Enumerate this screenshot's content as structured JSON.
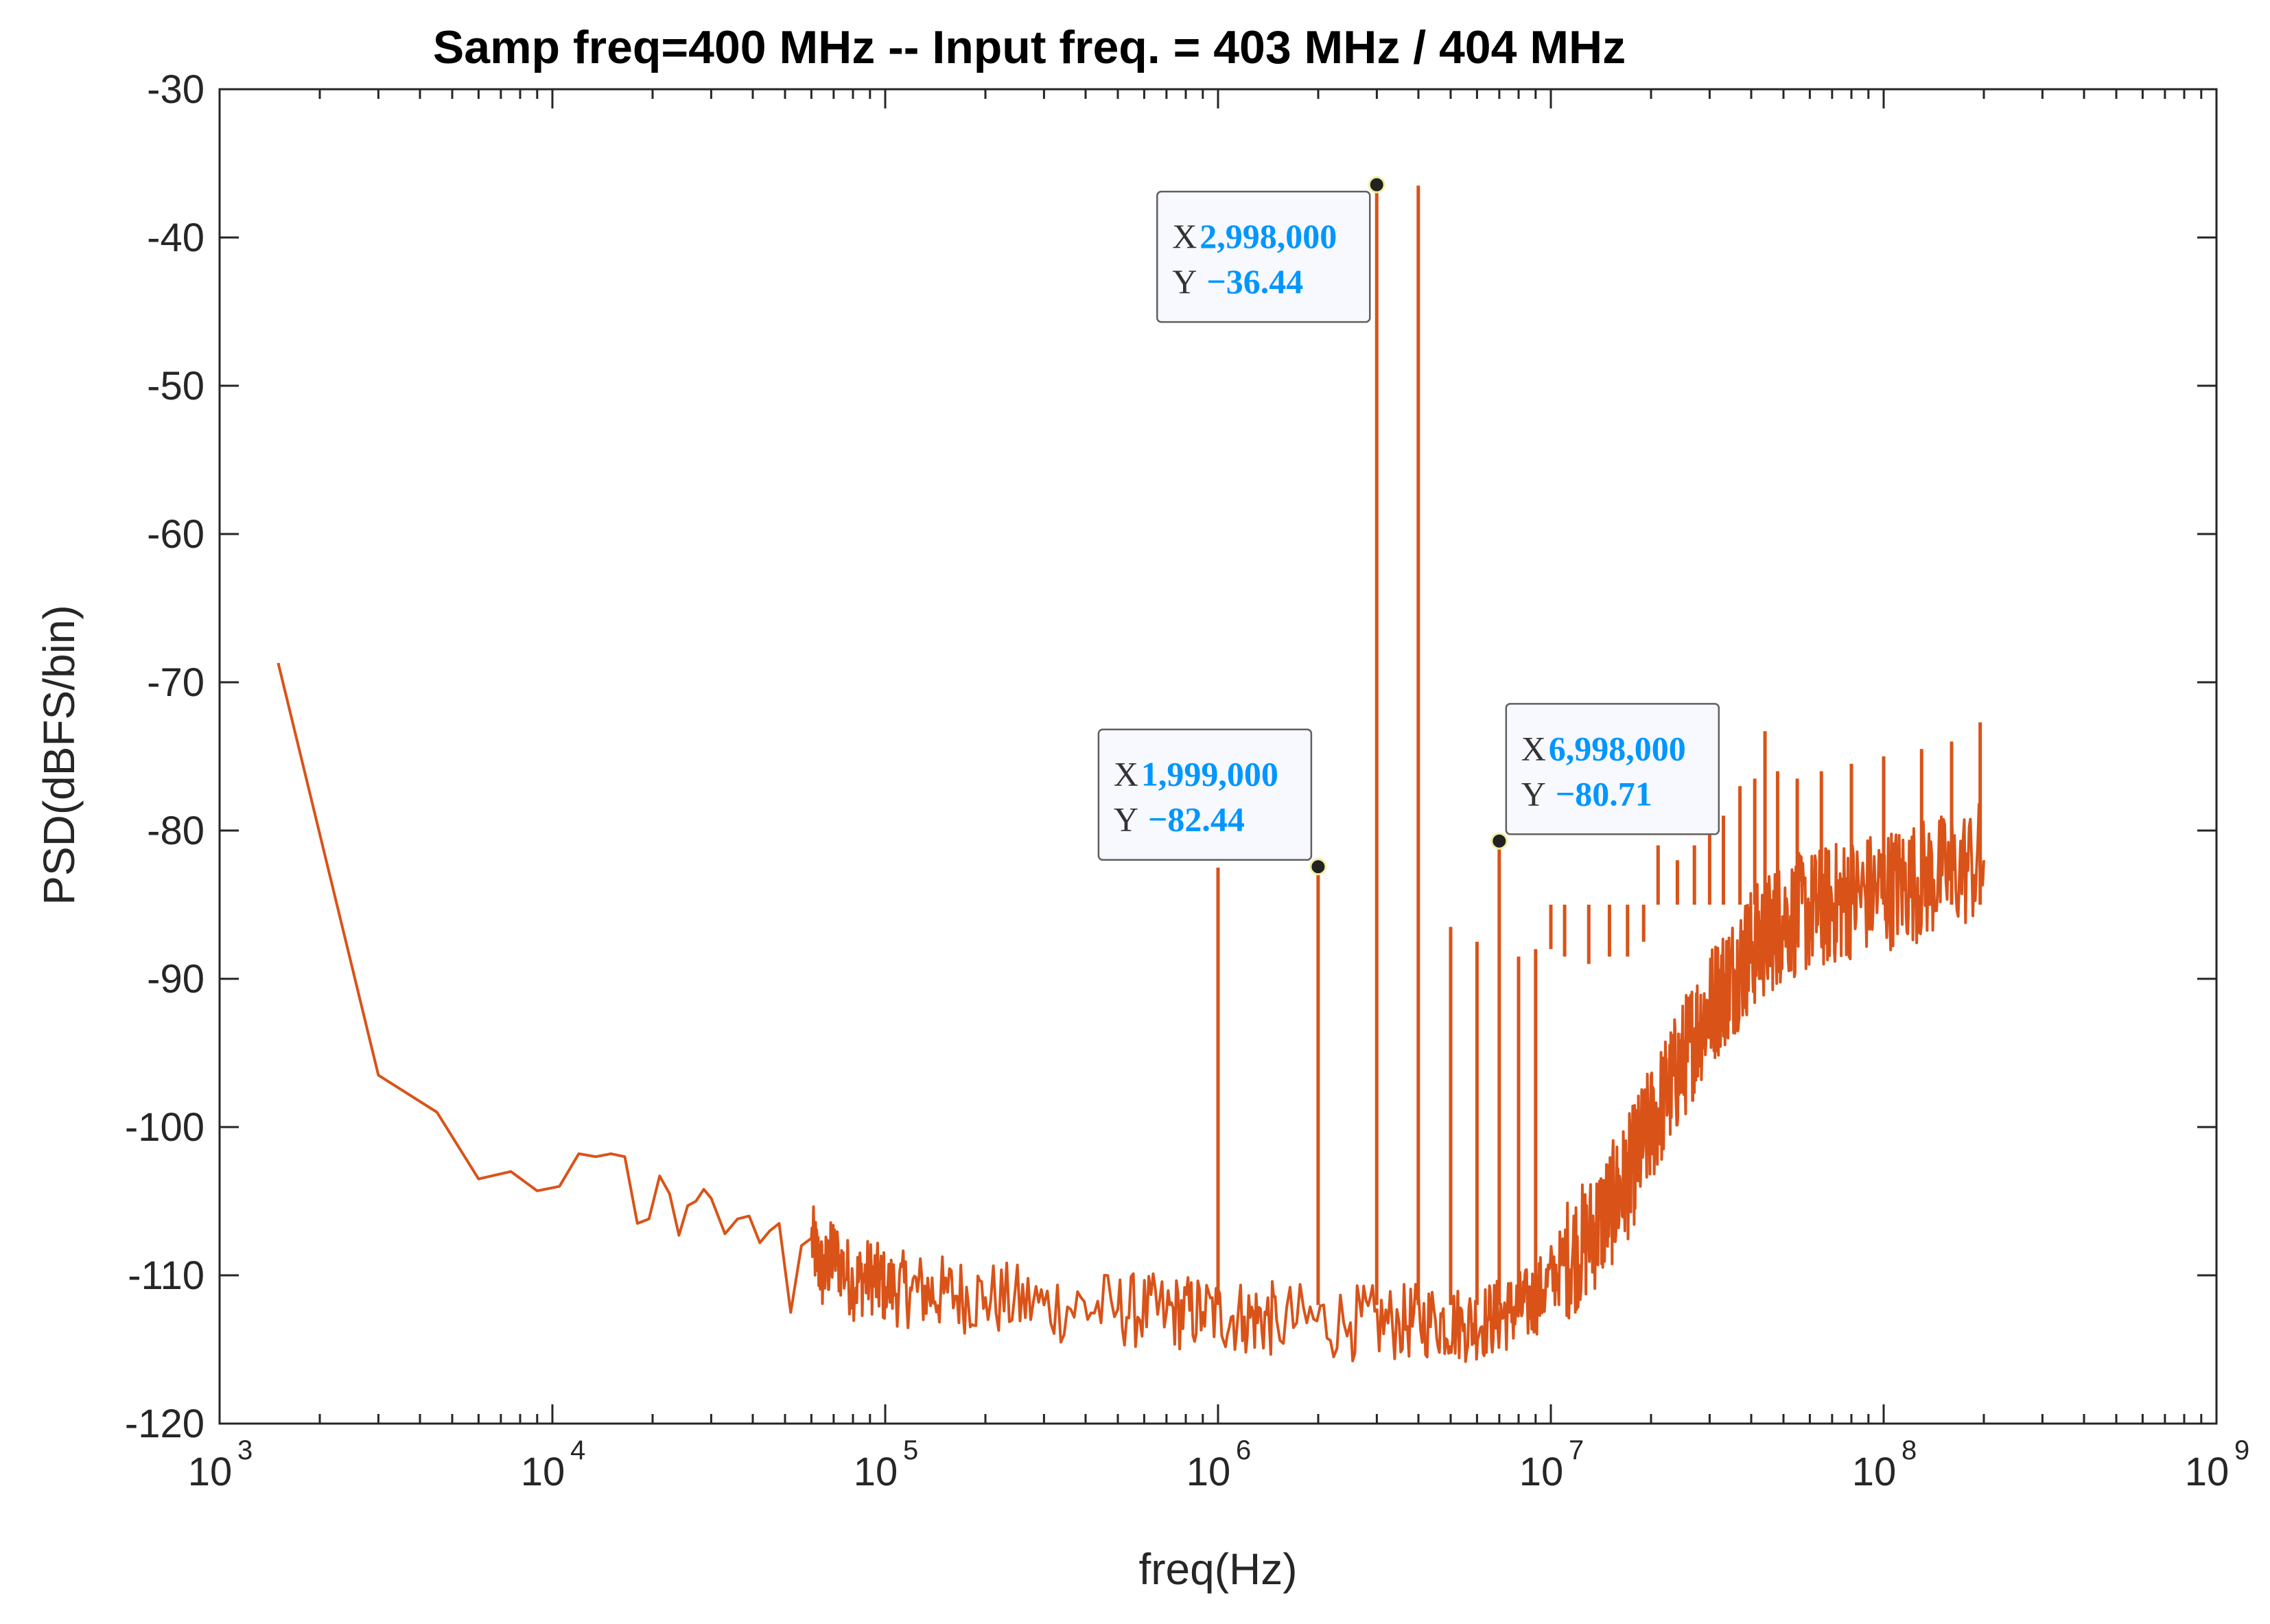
{
  "chart_data": {
    "type": "line",
    "title": "Samp freq=400 MHz --   Input freq. = 403 MHz / 404 MHz",
    "xlabel": "freq(Hz)",
    "ylabel": "PSD(dBFS/bin)",
    "xscale": "log",
    "xlim": [
      1000,
      1000000000
    ],
    "ylim": [
      -120,
      -30
    ],
    "x_ticks": [
      {
        "base": "10",
        "exp": "3",
        "value": 1000
      },
      {
        "base": "10",
        "exp": "4",
        "value": 10000
      },
      {
        "base": "10",
        "exp": "5",
        "value": 100000
      },
      {
        "base": "10",
        "exp": "6",
        "value": 1000000
      },
      {
        "base": "10",
        "exp": "7",
        "value": 10000000
      },
      {
        "base": "10",
        "exp": "8",
        "value": 100000000
      },
      {
        "base": "10",
        "exp": "9",
        "value": 1000000000
      }
    ],
    "y_ticks": [
      -30,
      -40,
      -50,
      -60,
      -70,
      -80,
      -90,
      -100,
      -110,
      -120
    ],
    "y_tick_labels": [
      "-30",
      "-40",
      "-50",
      "-60",
      "-70",
      "-80",
      "-90",
      "-100",
      "-110",
      "-120"
    ],
    "grid": false,
    "series": [
      {
        "name": "PSD",
        "color": "#D95319",
        "x": [
          1500,
          3000,
          4500,
          6000,
          7500,
          9000,
          10500,
          12000,
          13500,
          15000,
          16500,
          18000,
          19500,
          21000,
          22500,
          24000,
          25500,
          27000,
          28500,
          30000,
          33000,
          36000,
          39000,
          42000,
          45000,
          48000,
          52000,
          56000,
          60000,
          65000,
          70000,
          80000,
          90000,
          100000,
          120000,
          150000,
          200000,
          300000,
          500000,
          700000,
          900000,
          1200000,
          1500000,
          2500000,
          3500000,
          4500000,
          5500000,
          6500000,
          7500000,
          8500000,
          9500000,
          11000000,
          13000000,
          15000000,
          17000000,
          19000000,
          22000000,
          25000000,
          28000000,
          32000000,
          36000000,
          40000000,
          45000000,
          50000000,
          60000000,
          70000000,
          80000000,
          100000000,
          120000000,
          150000000,
          200000000
        ],
        "y": [
          -68.7,
          -96.5,
          -99,
          -103.5,
          -103,
          -104.3,
          -104,
          -101.8,
          -102.0,
          -101.8,
          -102.0,
          -106.5,
          -106.2,
          -103.3,
          -104.5,
          -107.3,
          -105.3,
          -105.0,
          -104.2,
          -104.8,
          -107.2,
          -106.2,
          -106.0,
          -107.8,
          -107.0,
          -106.5,
          -112.5,
          -108.0,
          -107.5,
          -110.0,
          -108.5,
          -110.5,
          -110.0,
          -110.8,
          -111.0,
          -111.2,
          -111.5,
          -112.0,
          -112.3,
          -112.5,
          -112.5,
          -112.8,
          -113.0,
          -113.2,
          -113.2,
          -113.0,
          -113.3,
          -113.0,
          -112.5,
          -112.0,
          -111.0,
          -109.0,
          -107.5,
          -105.5,
          -103.5,
          -101.0,
          -98.0,
          -95.5,
          -93.0,
          -91.0,
          -89.5,
          -88.0,
          -87.0,
          -86.0,
          -85.5,
          -85.0,
          -84.5,
          -84.0,
          -83.5,
          -83.0,
          -82.0
        ]
      }
    ],
    "spurs": [
      {
        "x": 1000000,
        "y": -82.5
      },
      {
        "x": 1999000,
        "y": -82.44
      },
      {
        "x": 2998000,
        "y": -36.44
      },
      {
        "x": 3997000,
        "y": -36.5
      },
      {
        "x": 5000000,
        "y": -86.5
      },
      {
        "x": 6000000,
        "y": -87.5
      },
      {
        "x": 6998000,
        "y": -80.71
      },
      {
        "x": 8000000,
        "y": -88.5
      },
      {
        "x": 9000000,
        "y": -88.0
      },
      {
        "x": 10000000,
        "y": -88.0
      },
      {
        "x": 11000000,
        "y": -88.5
      },
      {
        "x": 13000000,
        "y": -89.0
      },
      {
        "x": 15000000,
        "y": -88.5
      },
      {
        "x": 17000000,
        "y": -88.5
      },
      {
        "x": 19000000,
        "y": -87.5
      },
      {
        "x": 21000000,
        "y": -81.0
      },
      {
        "x": 24000000,
        "y": -82.0
      },
      {
        "x": 27000000,
        "y": -81.0
      },
      {
        "x": 30000000,
        "y": -80.0
      },
      {
        "x": 33000000,
        "y": -79.0
      },
      {
        "x": 37000000,
        "y": -77.0
      },
      {
        "x": 41000000,
        "y": -76.5
      },
      {
        "x": 44000000,
        "y": -73.3
      },
      {
        "x": 48000000,
        "y": -76.0
      },
      {
        "x": 55000000,
        "y": -76.5
      },
      {
        "x": 65000000,
        "y": -76.0
      },
      {
        "x": 80000000,
        "y": -75.5
      },
      {
        "x": 100000000,
        "y": -75.0
      },
      {
        "x": 130000000,
        "y": -74.5
      },
      {
        "x": 160000000,
        "y": -74.0
      },
      {
        "x": 195000000,
        "y": -72.7
      }
    ],
    "datatips": [
      {
        "x_label": "X",
        "x_value": "2,998,000",
        "y_label": "Y",
        "y_value": "−36.44",
        "x": 2998000,
        "y": -36.44,
        "placement": "lower-left"
      },
      {
        "x_label": "X",
        "x_value": "1,999,000",
        "y_label": "Y",
        "y_value": "−82.44",
        "x": 1999000,
        "y": -82.44,
        "placement": "upper-left"
      },
      {
        "x_label": "X",
        "x_value": "6,998,000",
        "y_label": "Y",
        "y_value": "−80.71",
        "x": 6998000,
        "y": -80.71,
        "placement": "upper-right"
      }
    ],
    "datatip_value_color": "#0096FF"
  }
}
